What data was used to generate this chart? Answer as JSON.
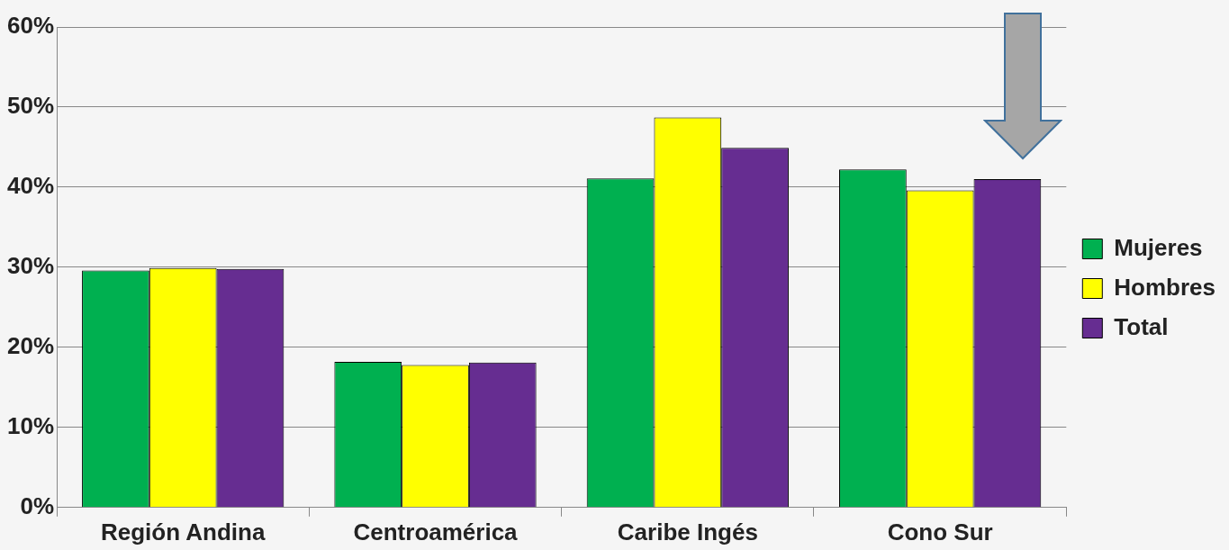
{
  "chart_data": {
    "type": "bar",
    "categories": [
      "Región Andina",
      "Centroamérica",
      "Caribe Ingés",
      "Cono Sur"
    ],
    "series": [
      {
        "name": "Mujeres",
        "color": "#00b050",
        "values": [
          29.6,
          18.2,
          41.1,
          42.2
        ]
      },
      {
        "name": "Hombres",
        "color": "#ffff00",
        "values": [
          29.9,
          17.8,
          48.7,
          39.6
        ]
      },
      {
        "name": "Total",
        "color": "#662d91",
        "values": [
          29.8,
          18.1,
          44.9,
          41.0
        ]
      }
    ],
    "ylim": [
      0,
      60
    ],
    "yticks": [
      {
        "value": 0,
        "label": "0%"
      },
      {
        "value": 10,
        "label": "10%"
      },
      {
        "value": 20,
        "label": "20%"
      },
      {
        "value": 30,
        "label": "30%"
      },
      {
        "value": 40,
        "label": "40%"
      },
      {
        "value": 50,
        "label": "50%"
      },
      {
        "value": 60,
        "label": "60%"
      }
    ],
    "grid": "y",
    "legend": "right"
  }
}
